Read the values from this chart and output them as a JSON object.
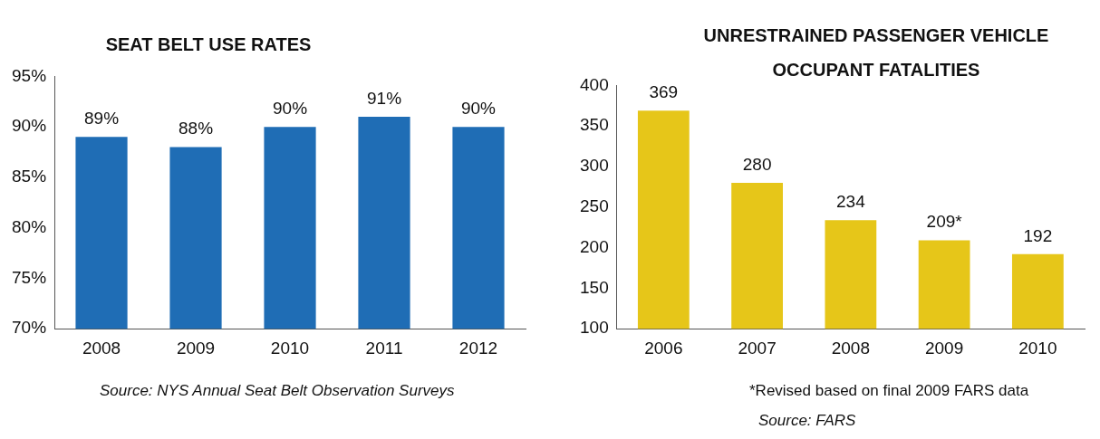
{
  "chart_data": [
    {
      "type": "bar",
      "title": "SEAT BELT USE RATES",
      "categories": [
        "2008",
        "2009",
        "2010",
        "2011",
        "2012"
      ],
      "values": [
        89,
        88,
        90,
        91,
        90
      ],
      "color": "#1f6db5",
      "ylim": [
        70,
        95
      ],
      "yticks": [
        {
          "value": 70,
          "label": "70%"
        },
        {
          "value": 75,
          "label": "75%"
        },
        {
          "value": 80,
          "label": "80%"
        },
        {
          "value": 85,
          "label": "85%"
        },
        {
          "value": 90,
          "label": "90%"
        },
        {
          "value": 95,
          "label": "95%"
        }
      ],
      "value_labels": [
        "89%",
        "88%",
        "90%",
        "91%",
        "90%"
      ],
      "annotations": [
        "Source:  NYS Annual Seat Belt Observation Surveys"
      ]
    },
    {
      "type": "bar",
      "title": "UNRESTRAINED PASSENGER VEHICLE OCCUPANT  FATALITIES",
      "categories": [
        "2006",
        "2007",
        "2008",
        "2009",
        "2010"
      ],
      "values": [
        369,
        280,
        234,
        209,
        192
      ],
      "color": "#e6c619",
      "ylim": [
        100,
        400
      ],
      "yticks": [
        100,
        150,
        200,
        250,
        300,
        350,
        400
      ],
      "value_labels": [
        "369",
        "280",
        "234",
        "209*",
        "192"
      ],
      "annotations": [
        "*Revised based on final 2009 FARS data",
        "Source:  FARS"
      ]
    }
  ]
}
